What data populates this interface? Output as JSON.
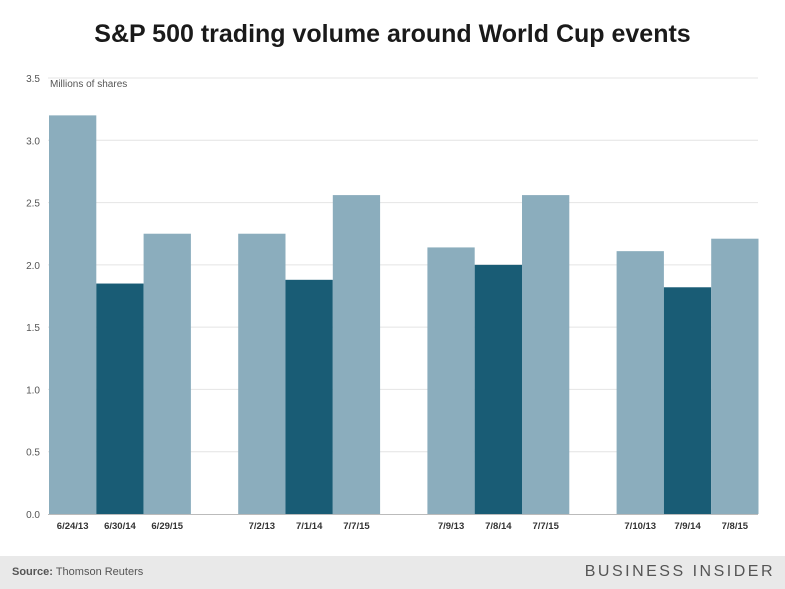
{
  "chart_data": {
    "type": "bar",
    "title": "S&P 500 trading volume around World Cup events",
    "ylabel": "Millions of shares",
    "xlabel": "",
    "ylim": [
      0,
      3.5
    ],
    "yticks": [
      0.0,
      0.5,
      1.0,
      1.5,
      2.0,
      2.5,
      3.0,
      3.5
    ],
    "ytick_labels": [
      "0.0",
      "0.5",
      "1.0",
      "1.5",
      "2.0",
      "2.5",
      "3.0",
      "3.5"
    ],
    "grid": true,
    "colors": {
      "light": "#8badbd",
      "dark": "#195c75",
      "grid": "#e4e4e4"
    },
    "groups": [
      {
        "bars": [
          {
            "label": "6/24/13",
            "value": 3.2,
            "shade": "light"
          },
          {
            "label": "6/30/14",
            "value": 1.85,
            "shade": "dark"
          },
          {
            "label": "6/29/15",
            "value": 2.25,
            "shade": "light"
          }
        ]
      },
      {
        "bars": [
          {
            "label": "7/2/13",
            "value": 2.25,
            "shade": "light"
          },
          {
            "label": "7/1/14",
            "value": 1.88,
            "shade": "dark"
          },
          {
            "label": "7/7/15",
            "value": 2.56,
            "shade": "light"
          }
        ]
      },
      {
        "bars": [
          {
            "label": "7/9/13",
            "value": 2.14,
            "shade": "light"
          },
          {
            "label": "7/8/14",
            "value": 2.0,
            "shade": "dark"
          },
          {
            "label": "7/7/15",
            "value": 2.56,
            "shade": "light"
          }
        ]
      },
      {
        "bars": [
          {
            "label": "7/10/13",
            "value": 2.11,
            "shade": "light"
          },
          {
            "label": "7/9/14",
            "value": 1.82,
            "shade": "dark"
          },
          {
            "label": "7/8/15",
            "value": 2.21,
            "shade": "light"
          }
        ]
      }
    ]
  },
  "footer": {
    "source_label": "Source:",
    "source_text": "Thomson Reuters",
    "brand": "BUSINESS INSIDER"
  }
}
